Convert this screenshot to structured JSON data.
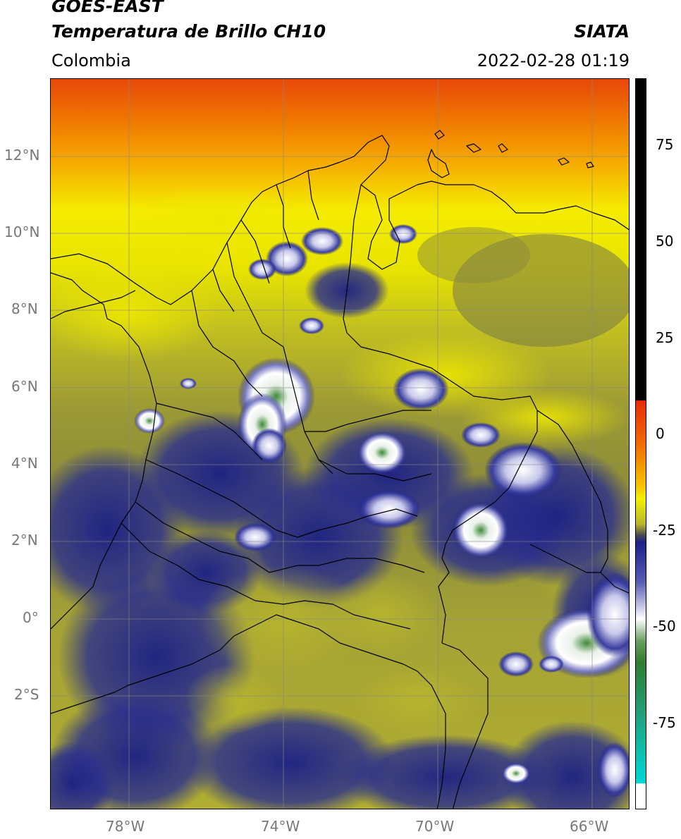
{
  "header": {
    "title_line1": "GOES-EAST",
    "title_line2": "Temperatura de Brillo CH10",
    "region": "Colombia",
    "source": "SIATA",
    "datetime": "2022-02-28 01:19"
  },
  "map": {
    "lon_ticks": [
      "78°W",
      "74°W",
      "70°W",
      "66°W"
    ],
    "lat_ticks": [
      "12°N",
      "10°N",
      "8°N",
      "6°N",
      "4°N",
      "2°N",
      "0°",
      "2°S"
    ],
    "extent": {
      "lon_min": -80.0,
      "lon_max": -65.0,
      "lat_min": -4.7,
      "lat_max": 14.0
    }
  },
  "colorbar": {
    "ticks": [
      "75",
      "50",
      "25",
      "0",
      "-25",
      "-50",
      "-75"
    ],
    "range": [
      -95,
      90
    ]
  },
  "colors": {
    "warm_red": "#e8400a",
    "orange": "#f6a000",
    "yellow": "#f4f000",
    "olive": "#a8a630",
    "navy": "#1a1f86",
    "white": "#f2f2f2",
    "green": "#3a8a35",
    "cyan": "#00d6d6",
    "black": "#000000"
  }
}
